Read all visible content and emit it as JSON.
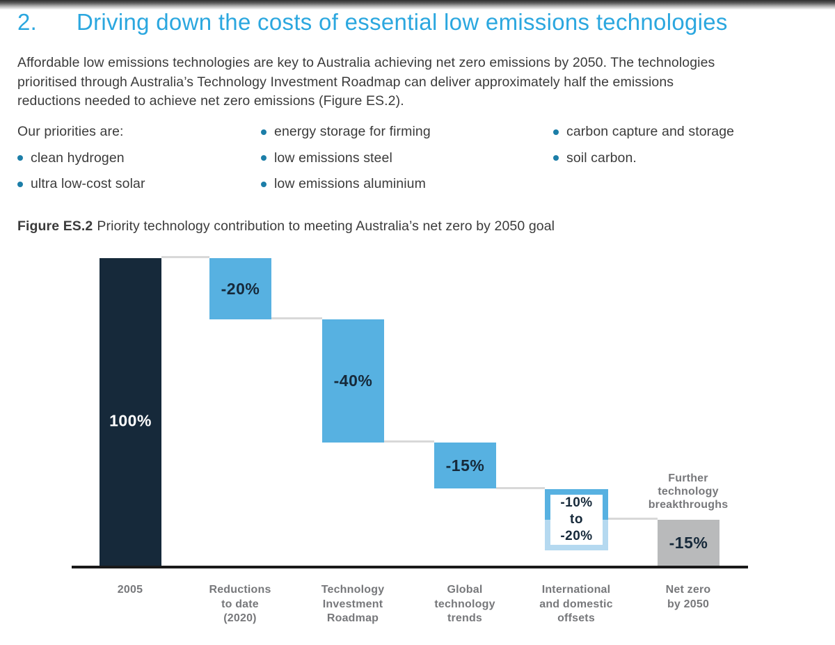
{
  "colors": {
    "heading_cyan": "#2BA7DF",
    "body_text": "#3B3B3B",
    "bullet_dot": "#1C7EA8",
    "navy": "#16293A",
    "light_blue": "#57B1E1",
    "pale_blue": "#B5D9F0",
    "gray_bar": "#B9BABB",
    "gray_text": "#77787B",
    "connector_gray": "#D8D8D8",
    "axis_black": "#1A1A1A"
  },
  "heading": {
    "number": "2.",
    "title": "Driving down the costs of essential low emissions technologies"
  },
  "intro_paragraph": "Affordable low emissions technologies are key to Australia achieving net zero emissions by 2050. The technologies\nprioritised through Australia’s Technology Investment Roadmap can deliver approximately half the emissions\nreductions needed to achieve net zero emissions (Figure ES.2).",
  "priorities": {
    "intro": "Our priorities are:",
    "column1": [
      "clean hydrogen",
      "ultra low-cost solar"
    ],
    "column2": [
      "energy storage for firming",
      "low emissions steel",
      "low emissions aluminium"
    ],
    "column3": [
      "carbon capture and storage",
      "soil carbon."
    ]
  },
  "figure_caption": {
    "label": "Figure ES.2",
    "text": "Priority technology contribution to meeting Australia’s net zero by 2050 goal"
  },
  "chart_data": {
    "type": "bar",
    "subtype": "waterfall",
    "title": "Priority technology contribution to meeting Australia’s net zero by 2050 goal",
    "ylim": [
      0,
      100
    ],
    "grid": false,
    "legend": "none",
    "categories": [
      "2005",
      "Reductions to date (2020)",
      "Technology Investment Roadmap",
      "Global technology trends",
      "International and domestic offsets",
      "Net zero by 2050"
    ],
    "x_tick_labels": [
      "2005",
      "Reductions\nto date\n(2020)",
      "Technology\nInvestment\nRoadmap",
      "Global\ntechnology\ntrends",
      "International\nand domestic\noffsets",
      "Net zero\nby 2050"
    ],
    "bars": [
      {
        "category": "2005",
        "label": "100%",
        "from": 100,
        "to": 0,
        "style": "navy"
      },
      {
        "category": "Reductions to date (2020)",
        "label": "-20%",
        "from": 100,
        "to": 80,
        "style": "blue"
      },
      {
        "category": "Technology Investment Roadmap",
        "label": "-40%",
        "from": 80,
        "to": 40,
        "style": "blue"
      },
      {
        "category": "Global technology trends",
        "label": "-15%",
        "from": 40,
        "to": 25,
        "style": "blue"
      },
      {
        "category": "International and domestic offsets",
        "label": "-10%\nto\n-20%",
        "from": 25,
        "to": 5,
        "solid_to": 15,
        "style": "range"
      },
      {
        "category": "Net zero by 2050",
        "label": "-15%",
        "from": 15,
        "to": 0,
        "style": "gray"
      }
    ],
    "annotation": "Further\ntechnology\nbreakthroughs"
  }
}
